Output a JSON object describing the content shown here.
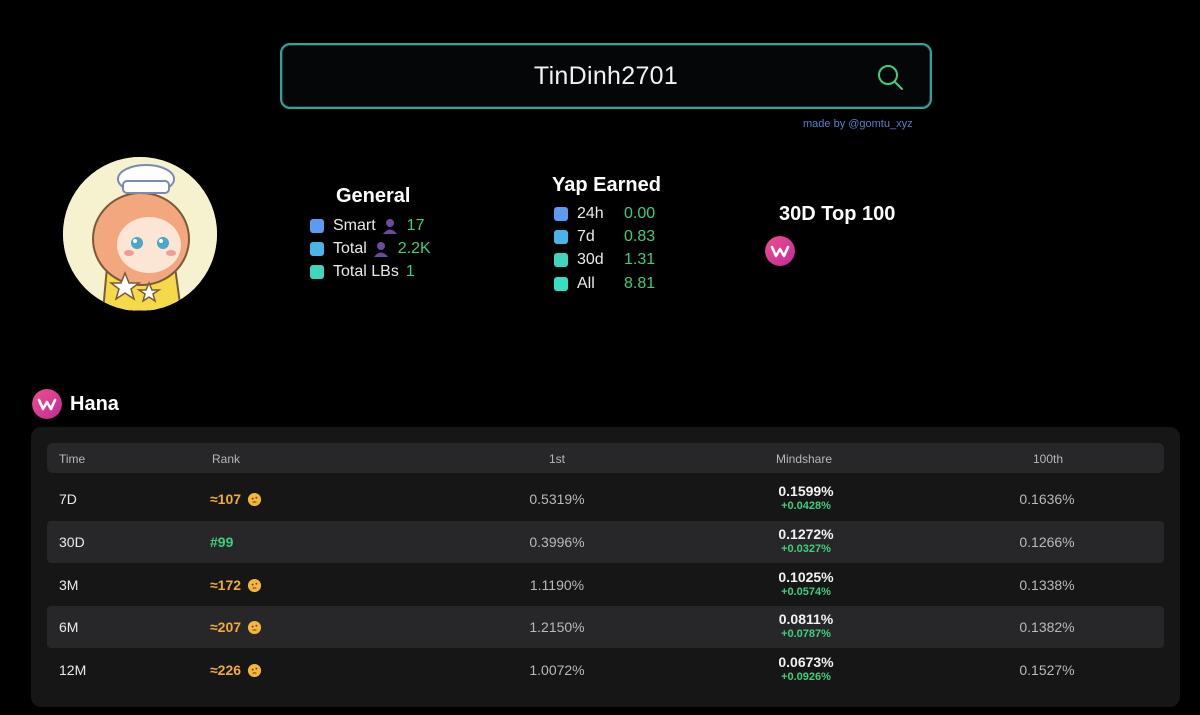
{
  "search": {
    "value": "TinDinh2701"
  },
  "credit": "made by @gomtu_xyz",
  "general": {
    "title": "General",
    "rows": [
      {
        "label": "Smart",
        "value": "17",
        "color": "#5b9cf2"
      },
      {
        "label": "Total",
        "value": "2.2K",
        "color": "#4ab4e8"
      },
      {
        "label": "Total LBs",
        "value": "1",
        "color": "#3fd6c0"
      }
    ]
  },
  "yap": {
    "title": "Yap Earned",
    "rows": [
      {
        "label": "24h",
        "value": "0.00",
        "color": "#5b9cf2"
      },
      {
        "label": "7d",
        "value": "0.83",
        "color": "#4ab4e8"
      },
      {
        "label": "30d",
        "value": "1.31",
        "color": "#3fd6c0"
      },
      {
        "label": "All",
        "value": "8.81",
        "color": "#35e0c0"
      }
    ]
  },
  "top100": {
    "title": "30D Top 100"
  },
  "section": {
    "title": "Hana"
  },
  "table": {
    "headers": {
      "time": "Time",
      "rank": "Rank",
      "first": "1st",
      "mindshare": "Mindshare",
      "hundredth": "100th"
    },
    "rows": [
      {
        "time": "7D",
        "rank": "≈107",
        "first": "0.5319%",
        "mindshare": "0.1599%",
        "delta": "+0.0428%",
        "hundredth": "0.1636%"
      },
      {
        "time": "30D",
        "rank": "#99",
        "first": "0.3996%",
        "mindshare": "0.1272%",
        "delta": "+0.0327%",
        "hundredth": "0.1266%"
      },
      {
        "time": "3M",
        "rank": "≈172",
        "first": "1.1190%",
        "mindshare": "0.1025%",
        "delta": "+0.0574%",
        "hundredth": "0.1338%"
      },
      {
        "time": "6M",
        "rank": "≈207",
        "first": "1.2150%",
        "mindshare": "0.0811%",
        "delta": "+0.0787%",
        "hundredth": "0.1382%"
      },
      {
        "time": "12M",
        "rank": "≈226",
        "first": "1.0072%",
        "mindshare": "0.0673%",
        "delta": "+0.0926%",
        "hundredth": "0.1527%"
      }
    ]
  },
  "colors": {
    "accent_green": "#3ecf7a",
    "rank_orange": "#f0a93a",
    "hana_pink": "#e0348a"
  },
  "icons": {
    "search": "search-icon",
    "person": "person-icon",
    "think": "thinking-face-icon",
    "logo": "hana-logo-icon"
  }
}
